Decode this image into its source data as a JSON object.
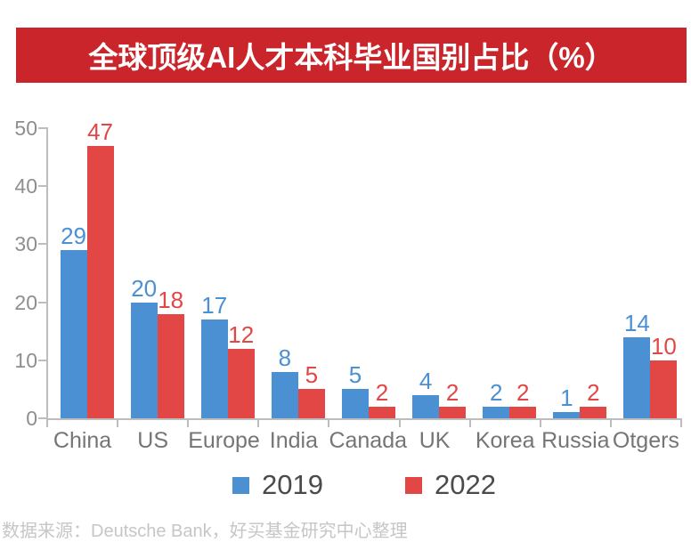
{
  "header": {
    "title": "全球顶级AI人才本科毕业国别占比（%）",
    "banner_color": "#C9252B"
  },
  "chart_data": {
    "type": "bar",
    "title": "全球顶级AI人才本科毕业国别占比（%）",
    "categories": [
      "China",
      "US",
      "Europe",
      "India",
      "Canada",
      "UK",
      "Korea",
      "Russia",
      "Otgers"
    ],
    "series": [
      {
        "name": "2019",
        "color": "#4A90D2",
        "values": [
          29,
          20,
          17,
          8,
          5,
          4,
          2,
          1,
          14
        ]
      },
      {
        "name": "2022",
        "color": "#E24746",
        "values": [
          47,
          18,
          12,
          5,
          2,
          2,
          2,
          2,
          10
        ]
      }
    ],
    "xlabel": "",
    "ylabel": "",
    "ylim": [
      0,
      50
    ],
    "yticks": [
      0,
      10,
      20,
      30,
      40,
      50
    ],
    "grid": false,
    "legend_position": "bottom",
    "value_labels": true
  },
  "footer": {
    "source_text": "数据来源：Deutsche Bank，好买基金研究中心整理"
  }
}
